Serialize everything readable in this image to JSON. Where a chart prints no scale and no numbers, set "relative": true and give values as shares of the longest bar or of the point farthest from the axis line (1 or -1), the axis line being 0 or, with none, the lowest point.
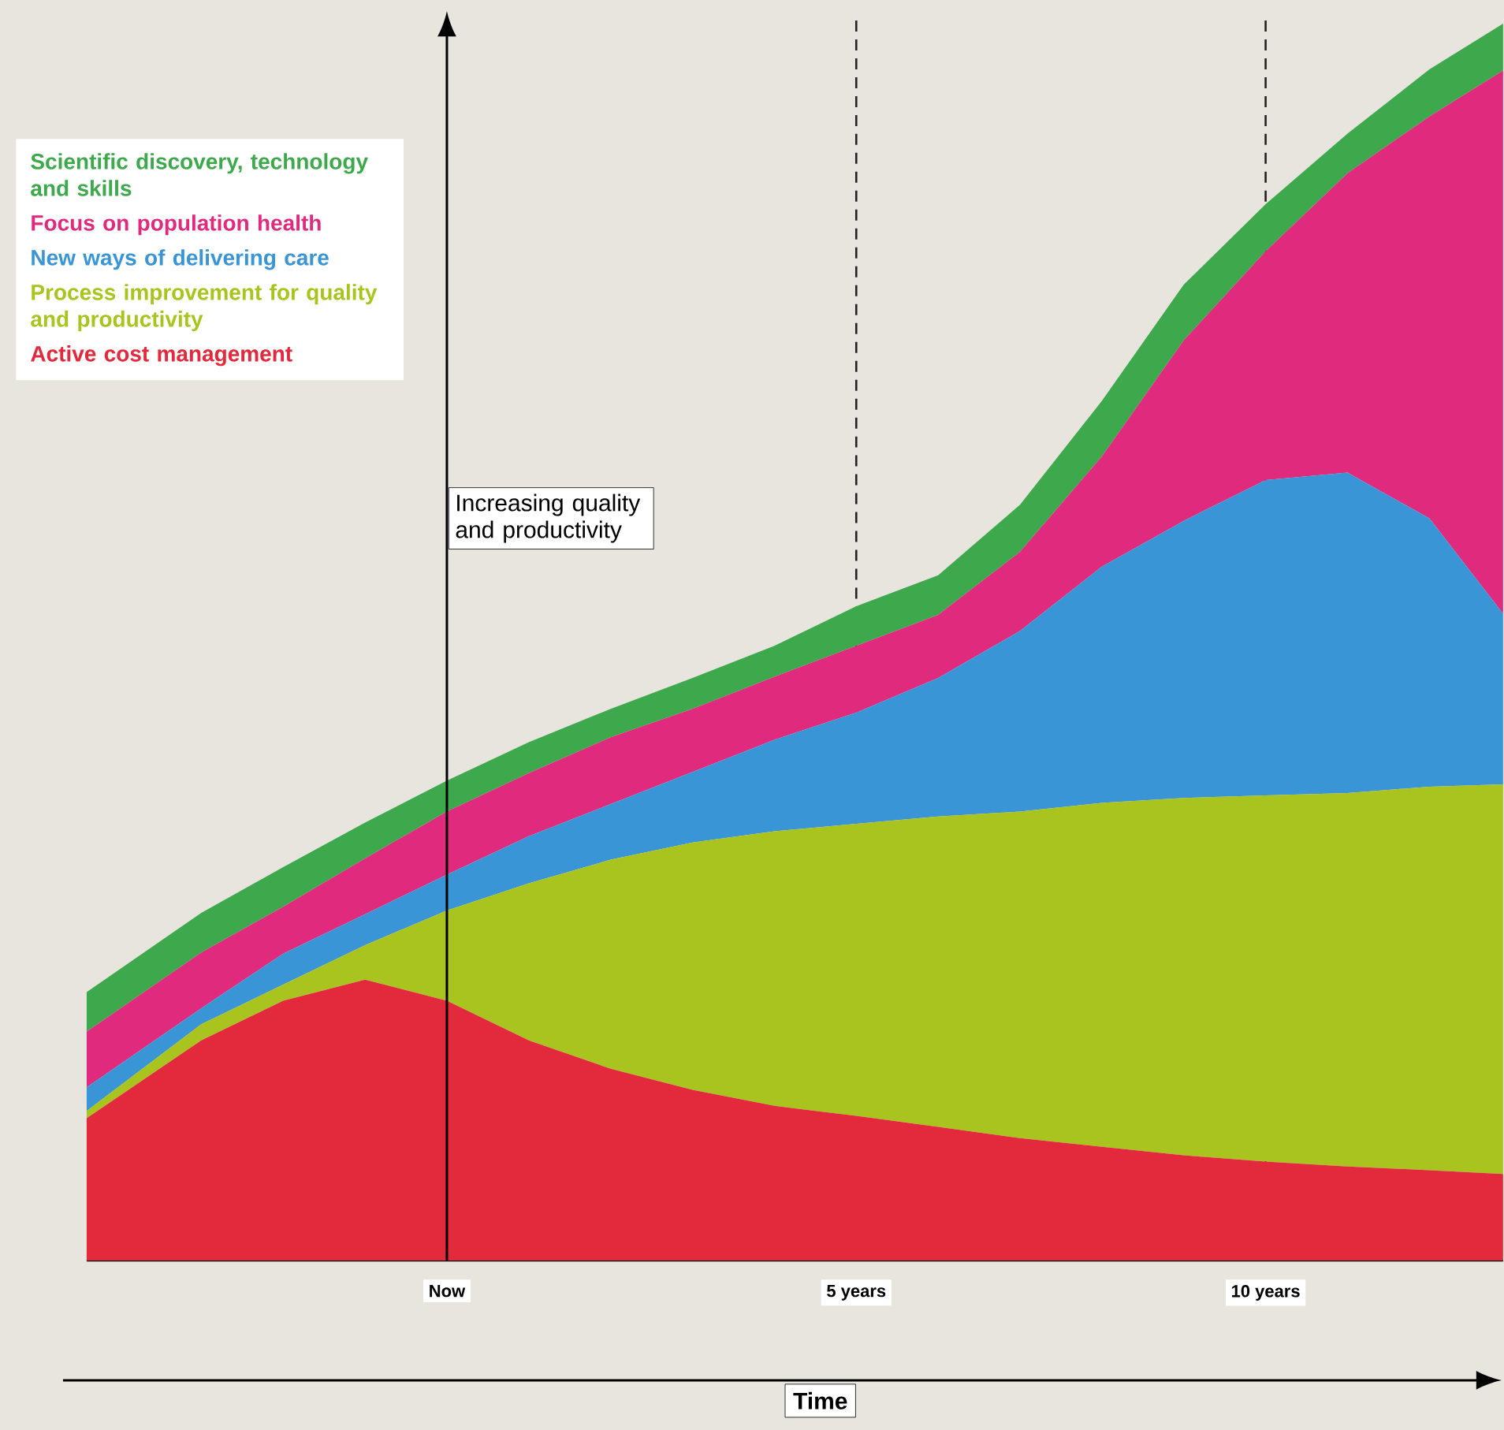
{
  "chart_data": {
    "type": "area",
    "stacked": true,
    "relative": true,
    "xlabel": "Time",
    "ylabel": "Increasing quality and productivity",
    "legend": "top left",
    "grid": false,
    "marker": "none",
    "x": [
      -4.4,
      -3,
      -2,
      -1,
      0,
      1,
      2,
      3,
      4,
      5,
      6,
      7,
      8,
      9,
      10,
      11,
      12,
      12.9
    ],
    "xlim": [
      -4.4,
      12.9
    ],
    "xticks": [
      {
        "value": 0,
        "label": "Now"
      },
      {
        "value": 5,
        "label": "5 years"
      },
      {
        "value": 10,
        "label": "10 years"
      }
    ],
    "ref_lines": [
      {
        "axis": "x",
        "value": 5,
        "line_style": "dashed",
        "color": "#222222"
      },
      {
        "axis": "x",
        "value": 10,
        "line_style": "dashed",
        "color": "#222222"
      }
    ],
    "series": [
      {
        "name": "Active cost management",
        "color": "#e3293c",
        "values": [
          0.115,
          0.178,
          0.21,
          0.227,
          0.21,
          0.178,
          0.155,
          0.138,
          0.125,
          0.117,
          0.108,
          0.099,
          0.092,
          0.085,
          0.08,
          0.076,
          0.073,
          0.07
        ]
      },
      {
        "name": "Process improvement for quality and productivity",
        "color": "#a9c41f",
        "values": [
          0.006,
          0.013,
          0.013,
          0.028,
          0.073,
          0.127,
          0.169,
          0.2,
          0.222,
          0.236,
          0.251,
          0.264,
          0.278,
          0.289,
          0.296,
          0.302,
          0.31,
          0.315
        ]
      },
      {
        "name": "New ways of delivering care",
        "color": "#3a95d6",
        "values": [
          0.019,
          0.013,
          0.025,
          0.025,
          0.029,
          0.038,
          0.045,
          0.057,
          0.074,
          0.09,
          0.112,
          0.146,
          0.191,
          0.224,
          0.255,
          0.259,
          0.217,
          0.138
        ]
      },
      {
        "name": "Focus on population health",
        "color": "#df2a7d",
        "values": [
          0.045,
          0.045,
          0.038,
          0.045,
          0.051,
          0.051,
          0.054,
          0.051,
          0.051,
          0.054,
          0.051,
          0.064,
          0.089,
          0.146,
          0.185,
          0.242,
          0.325,
          0.439
        ]
      },
      {
        "name": "Scientific discovery, technology and skills",
        "color": "#3ea84c",
        "values": [
          0.032,
          0.032,
          0.032,
          0.029,
          0.025,
          0.025,
          0.023,
          0.025,
          0.025,
          0.032,
          0.032,
          0.038,
          0.045,
          0.045,
          0.038,
          0.032,
          0.038,
          0.038
        ]
      }
    ]
  }
}
